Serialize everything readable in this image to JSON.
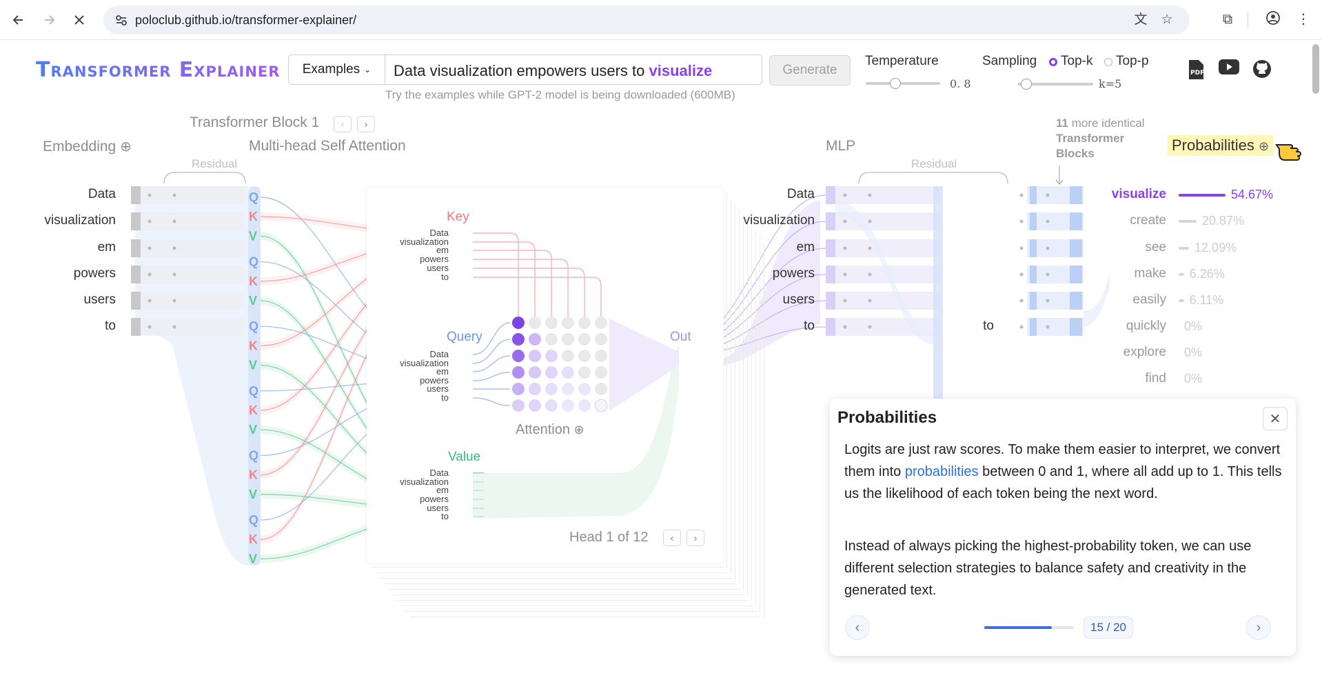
{
  "browser": {
    "url": "poloclub.github.io/transformer-explainer/",
    "back_icon": "arrow-left-icon",
    "forward_icon": "arrow-right-icon",
    "stop_icon": "close-icon"
  },
  "header": {
    "title": "Transformer Explainer",
    "examples_label": "Examples",
    "prompt_text": "Data visualization empowers users to",
    "prompt_highlight": "visualize",
    "generate_label": "Generate",
    "hint": "Try the examples while GPT-2 model is being downloaded (600MB)",
    "temperature_label": "Temperature",
    "temperature_value": "0. 8",
    "temperature_level": 0.4,
    "sampling_label": "Sampling",
    "topk_label": "Top-k",
    "topp_label": "Top-p",
    "k_value": "k=5",
    "k_level": 0.12
  },
  "sections": {
    "embedding": "Embedding",
    "block_label": "Transformer Block 1",
    "mhsa": "Multi-head Self Attention",
    "residual_left": "Residual",
    "residual_right": "Residual",
    "mlp": "MLP",
    "more_blocks_count": "11",
    "more_blocks_text": "more identical",
    "more_blocks_bold": "Transformer Blocks",
    "probabilities": "Probabilities",
    "key": "Key",
    "query": "Query",
    "value": "Value",
    "out": "Out",
    "attention": "Attention",
    "head_label": "Head 1 of 12"
  },
  "tokens": [
    "Data",
    "visualization",
    "em",
    "powers",
    "users",
    "to"
  ],
  "mlp_last_token": "to",
  "probabilities": [
    {
      "token": "visualize",
      "value": "54.67%",
      "p": 0.5467
    },
    {
      "token": "create",
      "value": "20.87%",
      "p": 0.2087
    },
    {
      "token": "see",
      "value": "12.09%",
      "p": 0.1209
    },
    {
      "token": "make",
      "value": "6.26%",
      "p": 0.0626
    },
    {
      "token": "easily",
      "value": "6.11%",
      "p": 0.0611
    },
    {
      "token": "quickly",
      "value": "0%",
      "p": 0
    },
    {
      "token": "explore",
      "value": "0%",
      "p": 0
    },
    {
      "token": "find",
      "value": "0%",
      "p": 0
    }
  ],
  "popup": {
    "title": "Probabilities",
    "p1_before": "Logits are just raw scores. To make them easier to interpret, we convert them into ",
    "p1_link": "probabilities",
    "p1_after": " between 0 and 1, where all add up to 1. This tells us the likelihood of each token being the next word.",
    "p2": "Instead of always picking the highest-probability token, we can use different selection strategies to balance safety and creativity in the generated text.",
    "counter": "15 / 20",
    "progress": 0.75
  },
  "colors": {
    "accent": "#8a3ff0",
    "query": "#7ea6f0",
    "key": "#f08a8a",
    "value": "#5cc98c"
  }
}
